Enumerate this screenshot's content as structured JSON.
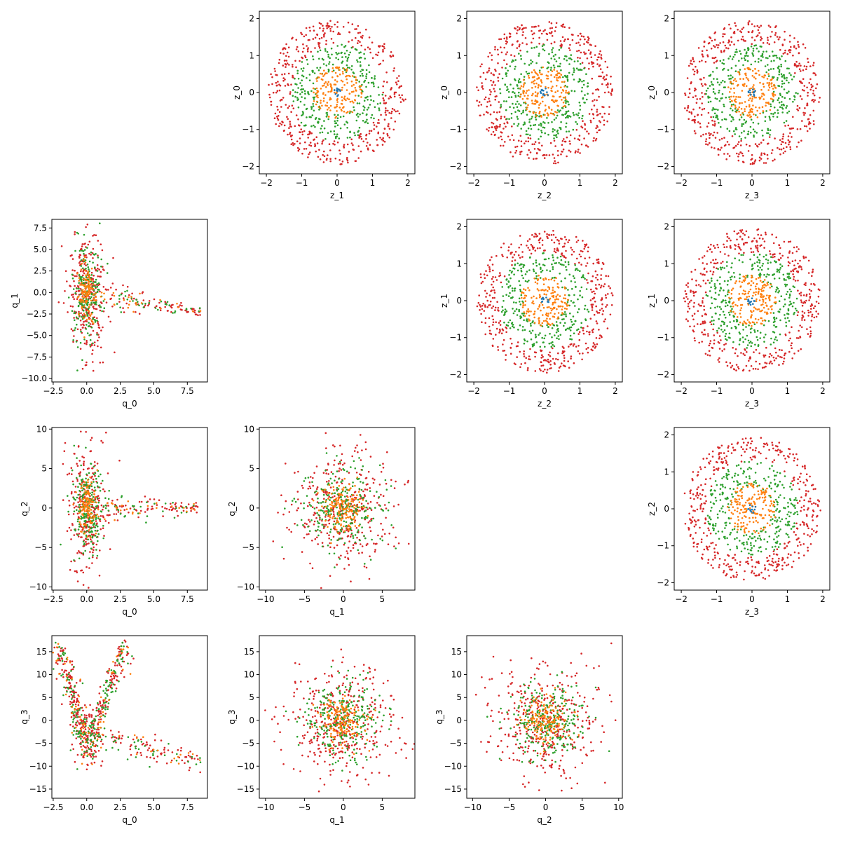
{
  "chart_data": [
    {
      "type": "scatter",
      "grid": false,
      "xlabel": "z_1",
      "ylabel": "z_0",
      "xlim": [
        -2.2,
        2.2
      ],
      "ylim": [
        -2.2,
        2.2
      ],
      "xticks": [
        -2,
        -1,
        0,
        1,
        2
      ],
      "yticks": [
        -2,
        -1,
        0,
        1,
        2
      ],
      "xtick_labels": [
        "−2",
        "−1",
        "0",
        "1",
        "2"
      ],
      "ytick_labels": [
        "−2",
        "−1",
        "0",
        "1",
        "2"
      ],
      "dist": {
        "kind": "z",
        "c": [
          0,
          0
        ]
      }
    },
    {
      "type": "scatter",
      "grid": false,
      "xlabel": "z_2",
      "ylabel": "z_0",
      "xlim": [
        -2.2,
        2.2
      ],
      "ylim": [
        -2.2,
        2.2
      ],
      "xticks": [
        -2,
        -1,
        0,
        1,
        2
      ],
      "yticks": [
        -2,
        -1,
        0,
        1,
        2
      ],
      "xtick_labels": [
        "−2",
        "−1",
        "0",
        "1",
        "2"
      ],
      "ytick_labels": [
        "−2",
        "−1",
        "0",
        "1",
        "2"
      ],
      "dist": {
        "kind": "z",
        "c": [
          0,
          0
        ]
      }
    },
    {
      "type": "scatter",
      "grid": false,
      "xlabel": "z_3",
      "ylabel": "z_0",
      "xlim": [
        -2.2,
        2.2
      ],
      "ylim": [
        -2.2,
        2.2
      ],
      "xticks": [
        -2,
        -1,
        0,
        1,
        2
      ],
      "yticks": [
        -2,
        -1,
        0,
        1,
        2
      ],
      "xtick_labels": [
        "−2",
        "−1",
        "0",
        "1",
        "2"
      ],
      "ytick_labels": [
        "−2",
        "−1",
        "0",
        "1",
        "2"
      ],
      "dist": {
        "kind": "z",
        "c": [
          0,
          0
        ]
      }
    },
    {
      "type": "scatter",
      "grid": false,
      "xlabel": "q_0",
      "ylabel": "q_1",
      "xlim": [
        -2.6,
        9.0
      ],
      "ylim": [
        -10.4,
        8.5
      ],
      "xticks": [
        -2.5,
        0,
        2.5,
        5,
        7.5
      ],
      "yticks": [
        -10,
        -7.5,
        -5,
        -2.5,
        0,
        2.5,
        5,
        7.5
      ],
      "xtick_labels": [
        "−2.5",
        "0.0",
        "2.5",
        "5.0",
        "7.5"
      ],
      "ytick_labels": [
        "−10.0",
        "−7.5",
        "−5.0",
        "−2.5",
        "0.0",
        "2.5",
        "5.0",
        "7.5"
      ],
      "dist": {
        "kind": "q0",
        "c": [
          0,
          0
        ],
        "s": [
          0.6,
          3.5
        ],
        "arm": [
          8.5,
          -2.2
        ]
      }
    },
    {
      "type": "scatter",
      "grid": false,
      "xlabel": "z_2",
      "ylabel": "z_1",
      "xlim": [
        -2.2,
        2.2
      ],
      "ylim": [
        -2.2,
        2.2
      ],
      "xticks": [
        -2,
        -1,
        0,
        1,
        2
      ],
      "yticks": [
        -2,
        -1,
        0,
        1,
        2
      ],
      "xtick_labels": [
        "−2",
        "−1",
        "0",
        "1",
        "2"
      ],
      "ytick_labels": [
        "−2",
        "−1",
        "0",
        "1",
        "2"
      ],
      "dist": {
        "kind": "z",
        "c": [
          0,
          0
        ]
      }
    },
    {
      "type": "scatter",
      "grid": false,
      "xlabel": "z_3",
      "ylabel": "z_1",
      "xlim": [
        -2.2,
        2.2
      ],
      "ylim": [
        -2.2,
        2.2
      ],
      "xticks": [
        -2,
        -1,
        0,
        1,
        2
      ],
      "yticks": [
        -2,
        -1,
        0,
        1,
        2
      ],
      "xtick_labels": [
        "−2",
        "−1",
        "0",
        "1",
        "2"
      ],
      "ytick_labels": [
        "−2",
        "−1",
        "0",
        "1",
        "2"
      ],
      "dist": {
        "kind": "z",
        "c": [
          0,
          0
        ]
      }
    },
    {
      "type": "scatter",
      "grid": false,
      "xlabel": "q_0",
      "ylabel": "q_2",
      "xlim": [
        -2.6,
        9.0
      ],
      "ylim": [
        -10.4,
        10.2
      ],
      "xticks": [
        -2.5,
        0,
        2.5,
        5,
        7.5
      ],
      "yticks": [
        -10,
        -5,
        0,
        5,
        10
      ],
      "xtick_labels": [
        "−2.5",
        "0.0",
        "2.5",
        "5.0",
        "7.5"
      ],
      "ytick_labels": [
        "−10",
        "−5",
        "0",
        "5",
        "10"
      ],
      "dist": {
        "kind": "q0",
        "c": [
          0,
          0
        ],
        "s": [
          0.6,
          3.8
        ],
        "arm": [
          8.5,
          0.0
        ]
      }
    },
    {
      "type": "scatter",
      "grid": false,
      "xlabel": "q_1",
      "ylabel": "q_2",
      "xlim": [
        -10.8,
        9.2
      ],
      "ylim": [
        -10.4,
        10.2
      ],
      "xticks": [
        -10,
        -5,
        0,
        5
      ],
      "yticks": [
        -10,
        -5,
        0,
        5,
        10
      ],
      "xtick_labels": [
        "−10",
        "−5",
        "0",
        "5"
      ],
      "ytick_labels": [
        "−10",
        "−5",
        "0",
        "5",
        "10"
      ],
      "dist": {
        "kind": "qq",
        "c": [
          0,
          0
        ],
        "s": [
          3.5,
          3.8
        ]
      }
    },
    {
      "type": "scatter",
      "grid": false,
      "xlabel": "z_3",
      "ylabel": "z_2",
      "xlim": [
        -2.2,
        2.2
      ],
      "ylim": [
        -2.2,
        2.2
      ],
      "xticks": [
        -2,
        -1,
        0,
        1,
        2
      ],
      "yticks": [
        -2,
        -1,
        0,
        1,
        2
      ],
      "xtick_labels": [
        "−2",
        "−1",
        "0",
        "1",
        "2"
      ],
      "ytick_labels": [
        "−2",
        "−1",
        "0",
        "1",
        "2"
      ],
      "dist": {
        "kind": "z",
        "c": [
          0,
          0
        ]
      }
    },
    {
      "type": "scatter",
      "grid": false,
      "xlabel": "q_0",
      "ylabel": "q_3",
      "xlim": [
        -2.6,
        9.0
      ],
      "ylim": [
        -17.0,
        18.5
      ],
      "xticks": [
        -2.5,
        0,
        2.5,
        5,
        7.5
      ],
      "yticks": [
        -15,
        -10,
        -5,
        0,
        5,
        10,
        15
      ],
      "xtick_labels": [
        "−2.5",
        "0.0",
        "2.5",
        "5.0",
        "7.5"
      ],
      "ytick_labels": [
        "−15",
        "−10",
        "−5",
        "0",
        "5",
        "10",
        "15"
      ],
      "dist": {
        "kind": "v",
        "c": [
          0,
          -3
        ]
      }
    },
    {
      "type": "scatter",
      "grid": false,
      "xlabel": "q_1",
      "ylabel": "q_3",
      "xlim": [
        -10.8,
        9.2
      ],
      "ylim": [
        -17.0,
        18.5
      ],
      "xticks": [
        -10,
        -5,
        0,
        5
      ],
      "yticks": [
        -15,
        -10,
        -5,
        0,
        5,
        10,
        15
      ],
      "xtick_labels": [
        "−10",
        "−5",
        "0",
        "5"
      ],
      "ytick_labels": [
        "−15",
        "−10",
        "−5",
        "0",
        "5",
        "10",
        "15"
      ],
      "dist": {
        "kind": "qq",
        "c": [
          0,
          0
        ],
        "s": [
          3.5,
          6.0
        ]
      }
    },
    {
      "type": "scatter",
      "grid": false,
      "xlabel": "q_2",
      "ylabel": "q_3",
      "xlim": [
        -10.8,
        10.5
      ],
      "ylim": [
        -17.0,
        18.5
      ],
      "xticks": [
        -10,
        -5,
        0,
        5,
        10
      ],
      "yticks": [
        -15,
        -10,
        -5,
        0,
        5,
        10,
        15
      ],
      "xtick_labels": [
        "−10",
        "−5",
        "0",
        "5",
        "10"
      ],
      "ytick_labels": [
        "−15",
        "−10",
        "−5",
        "0",
        "5",
        "10",
        "15"
      ],
      "dist": {
        "kind": "qq",
        "c": [
          0,
          0
        ],
        "s": [
          3.8,
          6.0
        ]
      }
    }
  ],
  "colors": {
    "red": "#d62728",
    "green": "#2ca02c",
    "orange": "#ff7f0e",
    "blue": "#1f77b4",
    "axis": "#000000"
  }
}
